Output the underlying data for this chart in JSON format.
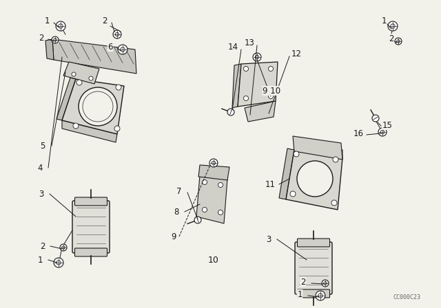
{
  "bg_color": "#f2f2ea",
  "line_color": "#1a1a1a",
  "watermark": "CC000C23",
  "fig_w": 6.4,
  "fig_h": 4.48,
  "dpi": 100
}
